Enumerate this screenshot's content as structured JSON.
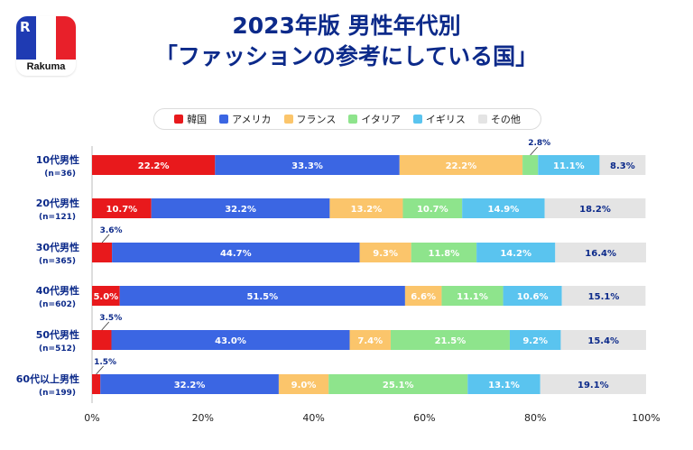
{
  "logo": {
    "letter": "R",
    "text": "Rakuma"
  },
  "title_line1": "2023年版 男性年代別",
  "title_line2": "「ファッションの参考にしている国」",
  "colors": {
    "korea": "#e8191c",
    "usa": "#3b66e3",
    "france": "#fbc56b",
    "italy": "#8ee48c",
    "uk": "#5ac4ef",
    "other": "#e4e4e4"
  },
  "chart_data": {
    "type": "bar",
    "orientation": "horizontal-stacked",
    "xlim": [
      0,
      100
    ],
    "x_ticks": [
      "0%",
      "20%",
      "40%",
      "60%",
      "80%",
      "100%"
    ],
    "categories": [
      {
        "label": "10代男性",
        "n": "(n=36)"
      },
      {
        "label": "20代男性",
        "n": "(n=121)"
      },
      {
        "label": "30代男性",
        "n": "(n=365)"
      },
      {
        "label": "40代男性",
        "n": "(n=602)"
      },
      {
        "label": "50代男性",
        "n": "(n=512)"
      },
      {
        "label": "60代以上男性",
        "n": "(n=199)"
      }
    ],
    "series": [
      {
        "key": "korea",
        "name": "韓国",
        "values": [
          22.2,
          10.7,
          3.6,
          5.0,
          3.5,
          1.5
        ]
      },
      {
        "key": "usa",
        "name": "アメリカ",
        "values": [
          33.3,
          32.2,
          44.7,
          51.5,
          43.0,
          32.2
        ]
      },
      {
        "key": "france",
        "name": "フランス",
        "values": [
          22.2,
          13.2,
          9.3,
          6.6,
          7.4,
          9.0
        ]
      },
      {
        "key": "italy",
        "name": "イタリア",
        "values": [
          2.8,
          10.7,
          11.8,
          11.1,
          21.5,
          25.1
        ]
      },
      {
        "key": "uk",
        "name": "イギリス",
        "values": [
          11.1,
          14.9,
          14.2,
          10.6,
          9.2,
          13.1
        ]
      },
      {
        "key": "other",
        "name": "その他",
        "values": [
          8.3,
          18.2,
          16.4,
          15.1,
          15.4,
          19.1
        ]
      }
    ],
    "value_suffix": "%"
  }
}
